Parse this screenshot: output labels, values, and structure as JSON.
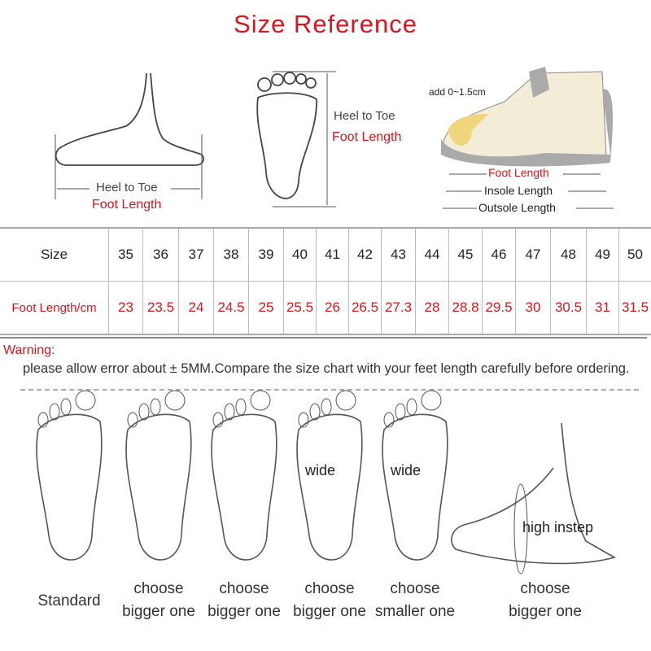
{
  "title": "Size  Reference",
  "diagrams": {
    "side_foot": {
      "label": "Heel to Toe",
      "sub": "Foot Length"
    },
    "sole": {
      "label": "Heel to Toe",
      "sub": "Foot Length"
    },
    "shoe": {
      "add": "add 0~1.5cm",
      "foot": "Foot Length",
      "insole": "Insole Length",
      "outsole": "Outsole Length"
    }
  },
  "table": {
    "row_headers": [
      "Size",
      "Foot Length/cm"
    ],
    "sizes": [
      "35",
      "36",
      "37",
      "38",
      "39",
      "40",
      "41",
      "42",
      "43",
      "44",
      "45",
      "46",
      "47",
      "48",
      "49",
      "50"
    ],
    "lengths": [
      "23",
      "23.5",
      "24",
      "24.5",
      "25",
      "25.5",
      "26",
      "26.5",
      "27.3",
      "28",
      "28.8",
      "29.5",
      "30",
      "30.5",
      "31",
      "31.5"
    ]
  },
  "warning": {
    "label": "Warning:",
    "text": "please allow error about ± 5MM.Compare the size chart with your feet length carefully before ordering."
  },
  "foot_types": [
    {
      "inner": "",
      "caption": [
        "Standard"
      ]
    },
    {
      "inner": "",
      "caption": [
        "choose",
        "bigger one"
      ]
    },
    {
      "inner": "",
      "caption": [
        "choose",
        "bigger one"
      ]
    },
    {
      "inner": "wide",
      "caption": [
        "choose",
        "bigger one"
      ]
    },
    {
      "inner": "wide",
      "caption": [
        "choose",
        "smaller one"
      ]
    },
    {
      "inner": "high instep",
      "caption": [
        "choose",
        "bigger one"
      ]
    }
  ],
  "colors": {
    "accent": "#d8161b",
    "line": "#444444"
  }
}
